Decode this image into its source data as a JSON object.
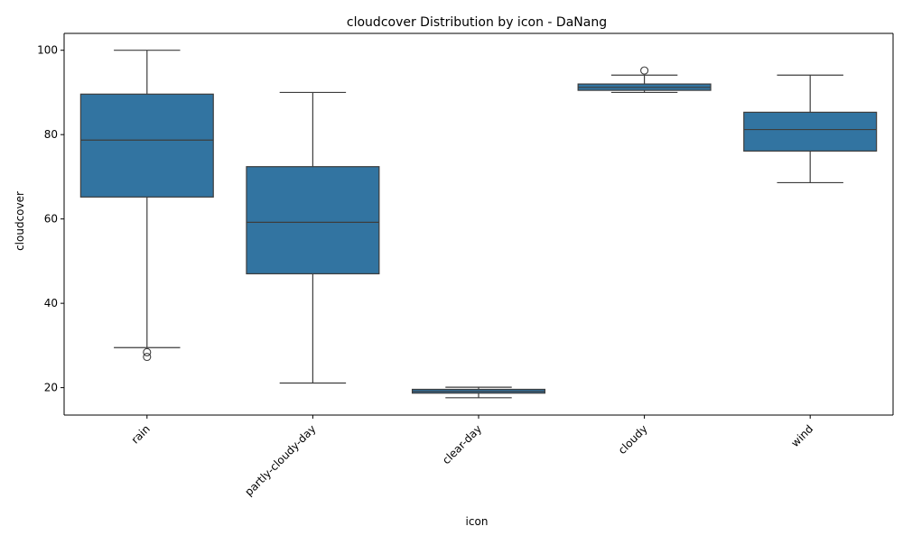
{
  "chart_data": {
    "type": "boxplot",
    "title": "cloudcover Distribution by icon - DaNang",
    "xlabel": "icon",
    "ylabel": "cloudcover",
    "categories": [
      "rain",
      "partly-cloudy-day",
      "clear-day",
      "cloudy",
      "wind"
    ],
    "ylim": [
      13.5,
      104
    ],
    "yticks": [
      20,
      40,
      60,
      80,
      100
    ],
    "grid": false,
    "box_color": "#3274a1",
    "line_color": "#3d3d3d",
    "boxes": [
      {
        "category": "rain",
        "whisker_low": 29.5,
        "q1": 65.2,
        "median": 78.7,
        "q3": 89.6,
        "whisker_high": 100,
        "outliers": [
          28.4,
          27.3
        ]
      },
      {
        "category": "partly-cloudy-day",
        "whisker_low": 21.1,
        "q1": 47.0,
        "median": 59.2,
        "q3": 72.4,
        "whisker_high": 90.0,
        "outliers": []
      },
      {
        "category": "clear-day",
        "whisker_low": 17.6,
        "q1": 18.7,
        "median": 19.1,
        "q3": 19.6,
        "whisker_high": 20.1,
        "outliers": []
      },
      {
        "category": "cloudy",
        "whisker_low": 90.0,
        "q1": 90.5,
        "median": 91.2,
        "q3": 92.0,
        "whisker_high": 94.1,
        "outliers": [
          95.2
        ]
      },
      {
        "category": "wind",
        "whisker_low": 68.6,
        "q1": 76.1,
        "median": 81.2,
        "q3": 85.3,
        "whisker_high": 94.1,
        "outliers": []
      }
    ]
  }
}
